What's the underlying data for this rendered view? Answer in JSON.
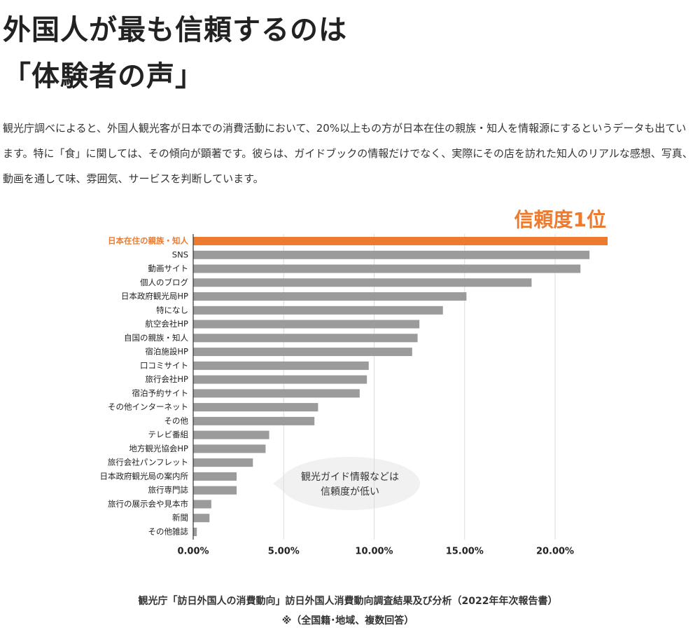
{
  "header": {
    "title_lines": [
      "外国人が最も信頼するのは",
      "「体験者の声」"
    ]
  },
  "paragraph": "観光庁調べによると、外国人観光客が日本での消費活動において、20%以上もの方が日本在住の親族・知人を情報源にするというデータも出ています。特に「食」に関しては、その傾向が顕著です。彼らは、ガイドブックの情報だけでなく、実際にその店を訪れた知人のリアルな感想、写真、動画を通して味、雰囲気、サービスを判断しています。",
  "chart_data": {
    "type": "hbar",
    "annotation": "信頼度1位",
    "callout_lines": [
      "観光ガイド情報などは",
      "信頼度が低い"
    ],
    "categories": [
      "日本在住の親族・知人",
      "SNS",
      "動画サイト",
      "個人のブログ",
      "日本政府観光局HP",
      "特になし",
      "航空会社HP",
      "自国の親族・知人",
      "宿泊施設HP",
      "口コミサイト",
      "旅行会社HP",
      "宿泊予約サイト",
      "その他インターネット",
      "その他",
      "テレビ番組",
      "地方観光協会HP",
      "旅行会社パンフレット",
      "日本政府観光局の案内所",
      "旅行専門誌",
      "旅行の展示会や見本市",
      "新聞",
      "その他雑誌"
    ],
    "values": [
      22.9,
      21.9,
      21.4,
      18.7,
      15.1,
      13.8,
      12.5,
      12.4,
      12.1,
      9.7,
      9.6,
      9.2,
      6.9,
      6.7,
      4.2,
      4.0,
      3.3,
      2.4,
      2.4,
      1.0,
      0.9,
      0.2
    ],
    "colors": [
      "#ec7a2f",
      "#9b9b9b",
      "#9b9b9b",
      "#9b9b9b",
      "#9b9b9b",
      "#9b9b9b",
      "#9b9b9b",
      "#9b9b9b",
      "#9b9b9b",
      "#9b9b9b",
      "#9b9b9b",
      "#9b9b9b",
      "#9b9b9b",
      "#9b9b9b",
      "#9b9b9b",
      "#9b9b9b",
      "#9b9b9b",
      "#9b9b9b",
      "#9b9b9b",
      "#9b9b9b",
      "#9b9b9b",
      "#9b9b9b"
    ],
    "xlim": [
      0,
      22.9
    ],
    "xticks": [
      {
        "value": 0,
        "label": "0.00%"
      },
      {
        "value": 5,
        "label": "5.00%"
      },
      {
        "value": 10,
        "label": "10.00%"
      },
      {
        "value": 15,
        "label": "15.00%"
      },
      {
        "value": 20,
        "label": "20.00%"
      }
    ],
    "grid": true
  },
  "source": {
    "line1": "観光庁「訪日外国人の消費動向」訪日外国人消費動向調査結果及び分析（2022年年次報告書）",
    "line2": "※（全国籍･地域、複数回答）"
  }
}
